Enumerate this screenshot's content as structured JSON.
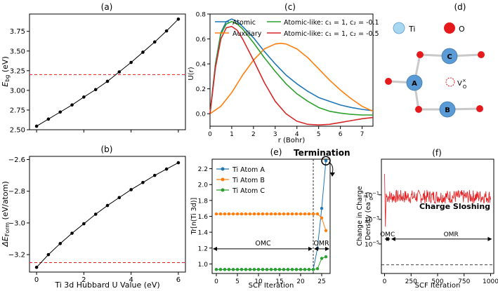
{
  "colors": {
    "black": "#000000",
    "red": "#e41a1c",
    "blue": "#1f77b4",
    "orange": "#ff7f0e",
    "green": "#2ca02c",
    "darkred": "#d62728",
    "ti_atom": "#5b9bd5",
    "ti_legend": "#a8d8f0",
    "o_atom": "#e41a1c"
  },
  "panels": {
    "a": {
      "label": "(a)"
    },
    "b": {
      "label": "(b)"
    },
    "c": {
      "label": "(c)"
    },
    "d": {
      "label": "(d)"
    },
    "e": {
      "label": "(e)"
    },
    "f": {
      "label": "(f)"
    }
  },
  "structure": {
    "legend_ti": "Ti",
    "legend_o": "O",
    "atom_a": "A",
    "atom_b": "B",
    "atom_c": "C",
    "vacancy": "V",
    "vacancy_sup": "×",
    "vacancy_sub": "O"
  },
  "chart_data": [
    {
      "id": "a",
      "type": "line",
      "x": [
        0,
        0.5,
        1,
        1.5,
        2,
        2.5,
        3,
        3.5,
        4,
        4.5,
        5,
        5.5,
        6
      ],
      "y": [
        2.545,
        2.635,
        2.725,
        2.815,
        2.915,
        3.01,
        3.115,
        3.235,
        3.355,
        3.485,
        3.615,
        3.755,
        3.905
      ],
      "hline": 3.2,
      "ylabel_main": "E",
      "ylabel_sub": "bg",
      "ylabel_unit": " (eV)",
      "yticks": [
        "2.50",
        "2.75",
        "3.00",
        "3.25",
        "3.50",
        "3.75"
      ],
      "ytick_values": [
        2.5,
        2.75,
        3.0,
        3.25,
        3.5,
        3.75
      ],
      "xlim": [
        -0.3,
        6.3
      ],
      "ylim": [
        2.5,
        3.97
      ]
    },
    {
      "id": "b",
      "type": "line",
      "x": [
        0,
        0.5,
        1,
        1.5,
        2,
        2.5,
        3,
        3.5,
        4,
        4.5,
        5,
        5.5,
        6
      ],
      "y": [
        -3.28,
        -3.2,
        -3.13,
        -3.065,
        -3.005,
        -2.945,
        -2.89,
        -2.84,
        -2.79,
        -2.745,
        -2.7,
        -2.66,
        -2.62
      ],
      "hline": -3.25,
      "ylabel_main": "ΔE",
      "ylabel_sub": "Form",
      "ylabel_unit": " (eV/atom)",
      "xlabel": "Ti 3d Hubbard U Value (eV)",
      "xticks": [
        "0",
        "2",
        "4",
        "6"
      ],
      "xtick_values": [
        0,
        2,
        4,
        6
      ],
      "yticks": [
        "−3.2",
        "−3.0",
        "−2.8",
        "−2.6"
      ],
      "ytick_values": [
        -3.2,
        -3.0,
        -2.8,
        -2.6
      ],
      "xlim": [
        -0.3,
        6.3
      ],
      "ylim": [
        -3.31,
        -2.58
      ]
    },
    {
      "id": "c",
      "type": "line",
      "xlabel": "r (Bohr)",
      "ylabel": "U(r)",
      "xlim": [
        0,
        7.5
      ],
      "ylim": [
        -0.1,
        0.8
      ],
      "xticks": [
        "0",
        "1",
        "2",
        "3",
        "4",
        "5",
        "6",
        "7"
      ],
      "xtick_values": [
        0,
        1,
        2,
        3,
        4,
        5,
        6,
        7
      ],
      "yticks": [
        "0.0",
        "0.2",
        "0.4",
        "0.6",
        "0.8"
      ],
      "ytick_values": [
        0,
        0.2,
        0.4,
        0.6,
        0.8
      ],
      "legend": {
        "atomic": "Atomic",
        "auxiliary": "Auxiliary",
        "like1": "Atomic-like: c₁ = 1, c₂ = -0.1",
        "like2": "Atomic-like: c₁ = 1, c₂ = -0.5"
      },
      "series": [
        {
          "key": "atomic",
          "color": "#1f77b4",
          "x": [
            0,
            0.25,
            0.5,
            0.75,
            1,
            1.25,
            1.5,
            2,
            2.5,
            3,
            3.5,
            4,
            4.5,
            5,
            5.5,
            6,
            6.5,
            7,
            7.5
          ],
          "y": [
            0,
            0.4,
            0.65,
            0.74,
            0.76,
            0.74,
            0.7,
            0.61,
            0.5,
            0.4,
            0.31,
            0.24,
            0.18,
            0.13,
            0.1,
            0.07,
            0.05,
            0.035,
            0.025
          ]
        },
        {
          "key": "auxiliary",
          "color": "#ff7f0e",
          "x": [
            0,
            0.5,
            1,
            1.5,
            2,
            2.5,
            3,
            3.25,
            3.5,
            4,
            4.5,
            5,
            5.5,
            6,
            6.5,
            7,
            7.5
          ],
          "y": [
            0,
            0.06,
            0.17,
            0.31,
            0.43,
            0.52,
            0.56,
            0.565,
            0.56,
            0.52,
            0.45,
            0.36,
            0.27,
            0.19,
            0.12,
            0.06,
            0.02
          ]
        },
        {
          "key": "like1",
          "color": "#2ca02c",
          "x": [
            0,
            0.25,
            0.5,
            0.75,
            1,
            1.25,
            1.5,
            2,
            2.5,
            3,
            3.5,
            4,
            4.5,
            5,
            5.5,
            6,
            6.5,
            7,
            7.5
          ],
          "y": [
            0,
            0.39,
            0.64,
            0.72,
            0.74,
            0.72,
            0.68,
            0.57,
            0.45,
            0.34,
            0.24,
            0.16,
            0.1,
            0.05,
            0.02,
            0.005,
            -0.005,
            -0.01,
            -0.01
          ]
        },
        {
          "key": "like2",
          "color": "#d62728",
          "x": [
            0,
            0.25,
            0.5,
            0.75,
            1,
            1.25,
            1.5,
            2,
            2.5,
            3,
            3.5,
            4,
            4.5,
            5,
            5.5,
            6,
            6.5,
            7,
            7.5
          ],
          "y": [
            0,
            0.37,
            0.6,
            0.69,
            0.7,
            0.67,
            0.6,
            0.43,
            0.25,
            0.1,
            0,
            -0.06,
            -0.085,
            -0.09,
            -0.085,
            -0.07,
            -0.055,
            -0.04,
            -0.03
          ]
        }
      ]
    },
    {
      "id": "e",
      "type": "line",
      "xlabel": "SCF Iteration",
      "ylabel": "Tr[n(Ti 3d)]",
      "xlim": [
        -1,
        27
      ],
      "ylim": [
        0.88,
        2.32
      ],
      "xticks": [
        "0",
        "5",
        "10",
        "15",
        "20",
        "25"
      ],
      "xtick_values": [
        0,
        5,
        10,
        15,
        20,
        25
      ],
      "yticks": [
        "1.0",
        "1.2",
        "1.4",
        "1.6",
        "1.8",
        "2.0",
        "2.2"
      ],
      "ytick_values": [
        1.0,
        1.2,
        1.4,
        1.6,
        1.8,
        2.0,
        2.2
      ],
      "vline": 23,
      "termination_label": "Termination",
      "omc_label": "OMC",
      "omr_label": "OMR",
      "legend": {
        "a": "Ti Atom A",
        "b": "Ti Atom B",
        "c": "Ti Atom C"
      },
      "series": [
        {
          "key": "a",
          "color": "#1f77b4",
          "x": [
            0,
            1,
            2,
            3,
            4,
            5,
            6,
            7,
            8,
            9,
            10,
            11,
            12,
            13,
            14,
            15,
            16,
            17,
            18,
            19,
            20,
            21,
            22,
            23,
            24,
            25,
            26
          ],
          "y": [
            0.93,
            0.93,
            0.93,
            0.93,
            0.93,
            0.93,
            0.93,
            0.93,
            0.93,
            0.93,
            0.93,
            0.93,
            0.93,
            0.93,
            0.93,
            0.93,
            0.93,
            0.93,
            0.93,
            0.93,
            0.93,
            0.93,
            0.93,
            0.93,
            1.2,
            1.7,
            2.3
          ]
        },
        {
          "key": "b",
          "color": "#ff7f0e",
          "x": [
            0,
            1,
            2,
            3,
            4,
            5,
            6,
            7,
            8,
            9,
            10,
            11,
            12,
            13,
            14,
            15,
            16,
            17,
            18,
            19,
            20,
            21,
            22,
            23,
            24,
            25,
            26
          ],
          "y": [
            1.63,
            1.63,
            1.63,
            1.63,
            1.63,
            1.63,
            1.63,
            1.63,
            1.63,
            1.63,
            1.63,
            1.63,
            1.63,
            1.63,
            1.63,
            1.63,
            1.63,
            1.63,
            1.63,
            1.63,
            1.63,
            1.63,
            1.63,
            1.63,
            1.63,
            1.58,
            1.42
          ]
        },
        {
          "key": "c",
          "color": "#2ca02c",
          "x": [
            0,
            1,
            2,
            3,
            4,
            5,
            6,
            7,
            8,
            9,
            10,
            11,
            12,
            13,
            14,
            15,
            16,
            17,
            18,
            19,
            20,
            21,
            22,
            23,
            24,
            25,
            26
          ],
          "y": [
            0.93,
            0.93,
            0.93,
            0.93,
            0.93,
            0.93,
            0.93,
            0.93,
            0.93,
            0.93,
            0.93,
            0.93,
            0.93,
            0.93,
            0.93,
            0.93,
            0.93,
            0.93,
            0.93,
            0.93,
            0.93,
            0.93,
            0.93,
            0.93,
            0.94,
            1.07,
            1.09
          ]
        }
      ]
    },
    {
      "id": "f",
      "type": "line",
      "xlabel": "SCF Iteration",
      "ylabel_line1": "Change in Charge",
      "ylabel_line2": "Density (ea",
      "ylabel_sup": "−3",
      "ylabel_sub": "0",
      "ylabel_end": ")",
      "scale": "log",
      "xlim": [
        -30,
        1030
      ],
      "ylim_log": [
        -7.4,
        1.9
      ],
      "xticks": [
        "0",
        "250",
        "500",
        "750",
        "1000"
      ],
      "xtick_values": [
        0,
        250,
        500,
        750,
        1000
      ],
      "yticks_exp": [
        "−5",
        "−3",
        "−1"
      ],
      "ytick_exp_values": [
        -5,
        -3,
        -1
      ],
      "hline_log": -6.7,
      "annotation": "Charge Sloshing",
      "omc_label": "OMC",
      "omr_label": "OMR",
      "omc_range": [
        0,
        55
      ],
      "omr_range": [
        55,
        1000
      ],
      "series_color": "#e41a1c"
    }
  ]
}
